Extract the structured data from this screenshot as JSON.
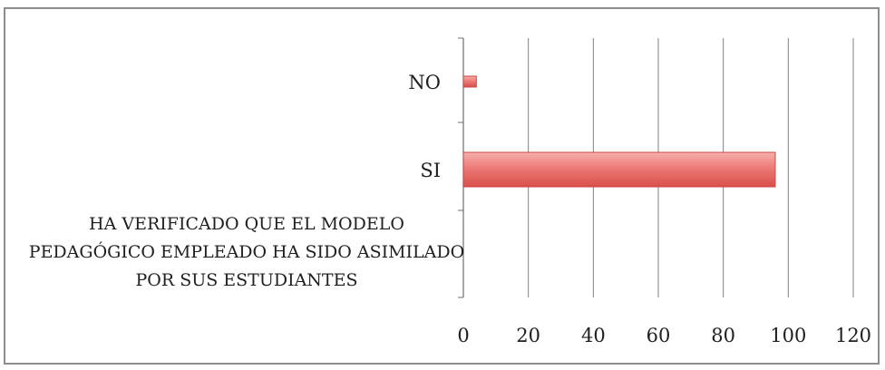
{
  "chart_data": {
    "type": "bar",
    "orientation": "horizontal",
    "categories": [
      "NO",
      "SI"
    ],
    "series": [
      {
        "name": "HA VERIFICADO QUE EL MODELO PEDAGÓGICO EMPLEADO HA SIDO ASIMILADO POR SUS ESTUDIANTES",
        "values": [
          4,
          96
        ]
      }
    ],
    "x_ticks": [
      "0",
      "20",
      "40",
      "60",
      "80",
      "100",
      "120"
    ],
    "xlim": [
      0,
      120
    ],
    "grid": "vertical",
    "bar_color": "#e86f6f",
    "title": "",
    "xlabel": "",
    "ylabel": ""
  }
}
